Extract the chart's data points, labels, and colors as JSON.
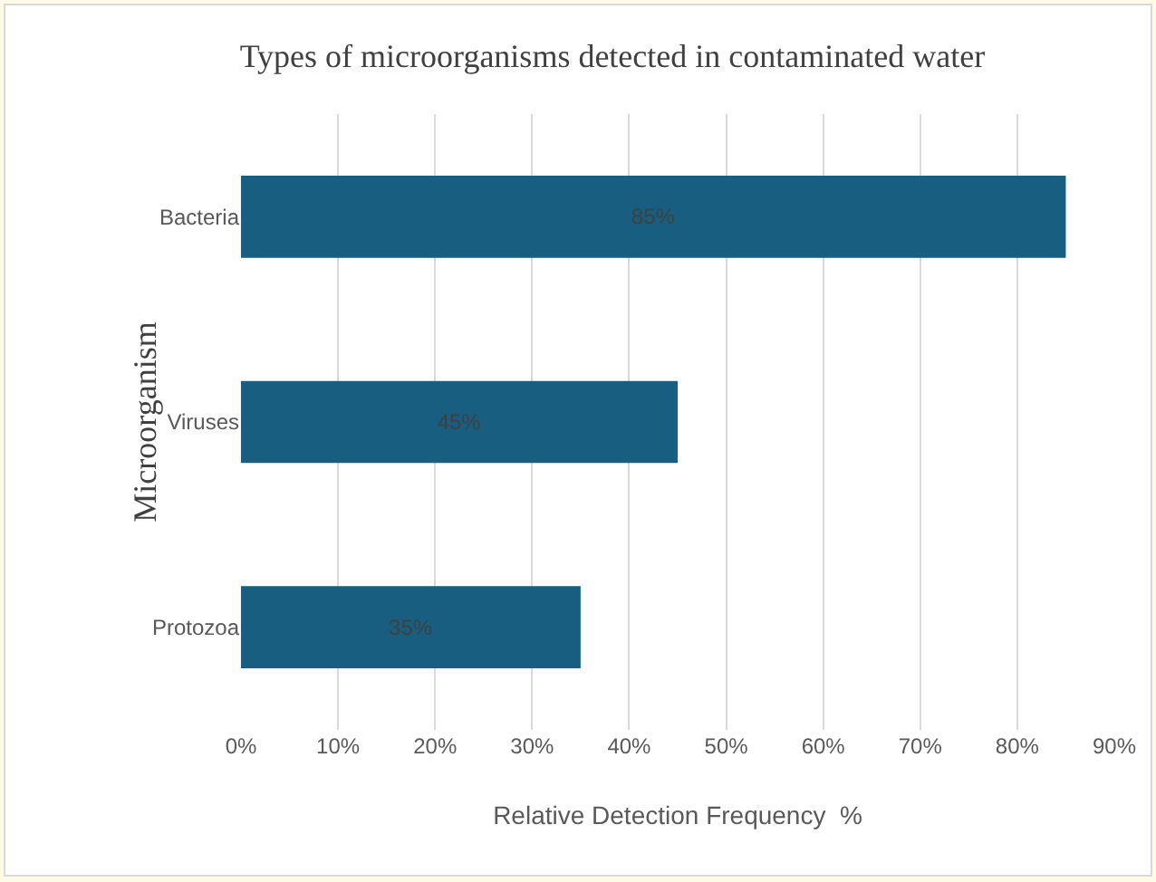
{
  "chart_data": {
    "type": "bar",
    "orientation": "horizontal",
    "title": "Types of microorganisms detected in contaminated water",
    "xlabel": "Relative Detection Frequency  %",
    "ylabel": "Microorganism",
    "categories": [
      "Bacteria",
      "Viruses",
      "Protozoa"
    ],
    "values": [
      85,
      45,
      35
    ],
    "color": "#175e80",
    "value_labels": [
      "85%",
      "45%",
      "35%"
    ],
    "xlim": [
      0,
      90
    ],
    "xticks": [
      {
        "value": 0,
        "label": "0%"
      },
      {
        "value": 10,
        "label": "10%"
      },
      {
        "value": 20,
        "label": "20%"
      },
      {
        "value": 30,
        "label": "30%"
      },
      {
        "value": 40,
        "label": "40%"
      },
      {
        "value": 50,
        "label": "50%"
      },
      {
        "value": 60,
        "label": "60%"
      },
      {
        "value": 70,
        "label": "70%"
      },
      {
        "value": 80,
        "label": "80%"
      },
      {
        "value": 90,
        "label": "90%"
      }
    ],
    "grid": "x"
  }
}
